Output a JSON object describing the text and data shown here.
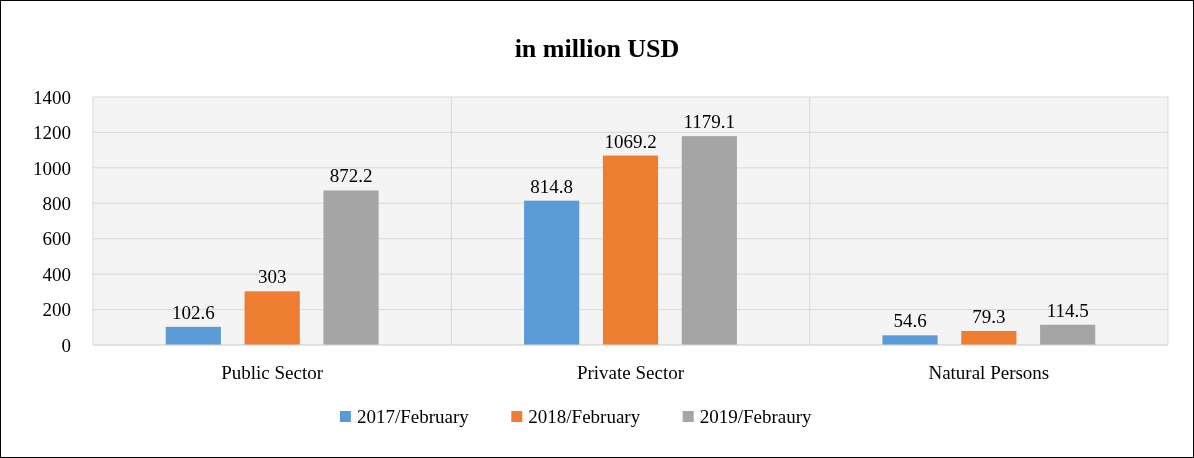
{
  "chart_data": {
    "type": "bar",
    "title": "in million USD",
    "categories": [
      "Public Sector",
      "Private Sector",
      "Natural Persons"
    ],
    "series": [
      {
        "name": "2017/February",
        "color": "#5b9bd5",
        "values": [
          102.6,
          814.8,
          54.6
        ]
      },
      {
        "name": "2018/February",
        "color": "#ed7d31",
        "values": [
          303,
          1069.2,
          79.3
        ]
      },
      {
        "name": "2019/Febraury",
        "color": "#a5a5a5",
        "values": [
          872.2,
          1179.1,
          114.5
        ]
      }
    ],
    "ylim": [
      0,
      1400
    ],
    "yticks": [
      0,
      200,
      400,
      600,
      800,
      1000,
      1200,
      1400
    ],
    "grid": true,
    "legend": "bottom",
    "data_labels": true
  }
}
